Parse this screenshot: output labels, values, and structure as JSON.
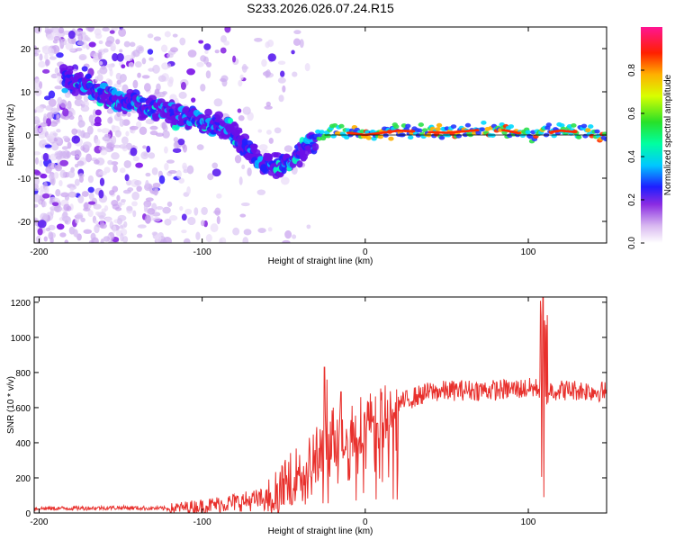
{
  "title": "S233.2026.026.07.24.R15",
  "colors": {
    "snr_line": "#e8302c",
    "frame": "#000000",
    "trace_line": "#000000"
  },
  "chart_data": [
    {
      "type": "heatmap",
      "xlabel": "Height of straight line (km)",
      "ylabel": "Frequency (Hz)",
      "xlim": [
        -203,
        148
      ],
      "ylim": [
        -25,
        25
      ],
      "xticks": [
        -200,
        -100,
        0,
        100
      ],
      "yticks": [
        -20,
        -10,
        0,
        10,
        20
      ],
      "colorbar": {
        "label": "Normalized spectral amplitude",
        "range": [
          0.0,
          1.0
        ],
        "ticks": [
          0.0,
          0.2,
          0.4,
          0.6,
          0.8
        ]
      },
      "ridge": {
        "description_points_x": [
          -190,
          -175,
          -160,
          -140,
          -120,
          -100,
          -85,
          -75,
          -65,
          -55,
          -45,
          -35,
          -20,
          0,
          20,
          50,
          80,
          100,
          120,
          148
        ],
        "description_points_y": [
          14,
          12,
          9,
          7,
          5,
          3,
          2,
          -2,
          -6,
          -7,
          -6,
          -2,
          1,
          0,
          1,
          0.5,
          1.5,
          0,
          1,
          0
        ]
      }
    },
    {
      "type": "line",
      "xlabel": "Height of straight line (km)",
      "ylabel": "SNR (10 * v/v)",
      "xlim": [
        -203,
        148
      ],
      "ylim": [
        0,
        1230
      ],
      "xticks": [
        -200,
        -100,
        0,
        100
      ],
      "yticks": [
        0,
        200,
        400,
        600,
        800,
        1000,
        1200
      ],
      "series": [
        {
          "name": "SNR",
          "envelope_x": [
            -203,
            -150,
            -120,
            -100,
            -80,
            -60,
            -50,
            -40,
            -30,
            -20,
            -10,
            0,
            10,
            20,
            30,
            40,
            60,
            80,
            100,
            105,
            108,
            110,
            115,
            130,
            148
          ],
          "envelope_y": [
            25,
            30,
            25,
            40,
            60,
            80,
            150,
            250,
            330,
            420,
            480,
            520,
            580,
            620,
            660,
            690,
            700,
            700,
            710,
            710,
            710,
            700,
            700,
            700,
            690
          ]
        }
      ]
    }
  ]
}
